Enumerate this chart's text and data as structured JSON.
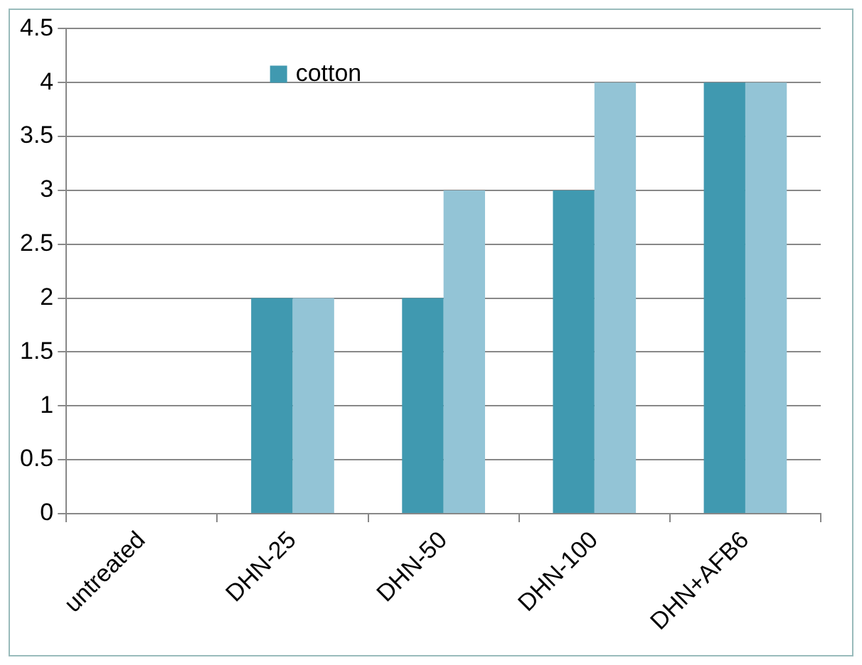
{
  "chart_data": {
    "type": "bar",
    "categories": [
      "untreated",
      "DHN-25",
      "DHN-50",
      "DHN-100",
      "DHN+AFB6"
    ],
    "series": [
      {
        "name": "cotton",
        "color": "#4099b0",
        "values": [
          0,
          2,
          2,
          3,
          4
        ]
      },
      {
        "color": "#93c4d6",
        "values": [
          0,
          2,
          3,
          4,
          4
        ]
      }
    ],
    "ylim": [
      0,
      4.5
    ],
    "yticks": [
      0,
      0.5,
      1,
      1.5,
      2,
      2.5,
      3,
      3.5,
      4,
      4.5
    ],
    "grid": "y",
    "legend": "top left"
  }
}
